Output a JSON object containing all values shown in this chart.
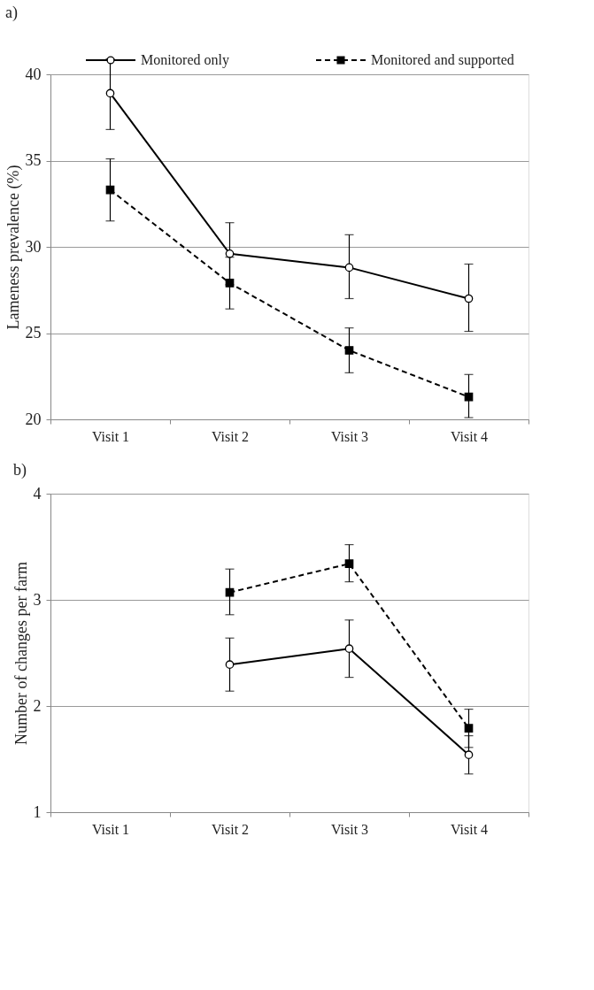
{
  "chart_data": [
    {
      "type": "line",
      "title": "a)",
      "ylabel": "Lameness prevalence (%)",
      "categories": [
        "Visit 1",
        "Visit 2",
        "Visit 3",
        "Visit 4"
      ],
      "ylim": [
        20,
        40
      ],
      "yticks": [
        20,
        25,
        30,
        35,
        40
      ],
      "grid": "y",
      "legend": "top",
      "series": [
        {
          "name": "Monitored only",
          "color": "#000000",
          "marker": "circle",
          "line_style": "solid",
          "values": [
            38.9,
            29.6,
            28.8,
            27.0
          ],
          "errors": [
            [
              36.8,
              40.9
            ],
            [
              27.8,
              31.4
            ],
            [
              27.0,
              30.7
            ],
            [
              25.1,
              29.0
            ]
          ]
        },
        {
          "name": "Monitored and supported",
          "color": "#000000",
          "marker": "square",
          "line_style": "dashed",
          "values": [
            33.3,
            27.9,
            24.0,
            21.3
          ],
          "errors": [
            [
              31.5,
              35.1
            ],
            [
              26.4,
              29.4
            ],
            [
              22.7,
              25.3
            ],
            [
              20.1,
              22.6
            ]
          ]
        }
      ]
    },
    {
      "type": "line",
      "title": "b)",
      "ylabel": "Number of changes per farm",
      "categories": [
        "Visit 1",
        "Visit 2",
        "Visit 3",
        "Visit 4"
      ],
      "ylim": [
        1,
        4
      ],
      "yticks": [
        1,
        2,
        3,
        4
      ],
      "grid": "y",
      "series": [
        {
          "color": "#000000",
          "marker": "circle",
          "line_style": "solid",
          "values": [
            null,
            2.39,
            2.54,
            1.54
          ],
          "errors": [
            null,
            [
              2.14,
              2.64
            ],
            [
              2.27,
              2.81
            ],
            [
              1.36,
              1.72
            ]
          ]
        },
        {
          "color": "#000000",
          "marker": "square",
          "line_style": "dashed",
          "values": [
            null,
            3.07,
            3.34,
            1.79
          ],
          "errors": [
            null,
            [
              2.86,
              3.29
            ],
            [
              3.17,
              3.52
            ],
            [
              1.61,
              1.97
            ]
          ]
        }
      ]
    }
  ]
}
